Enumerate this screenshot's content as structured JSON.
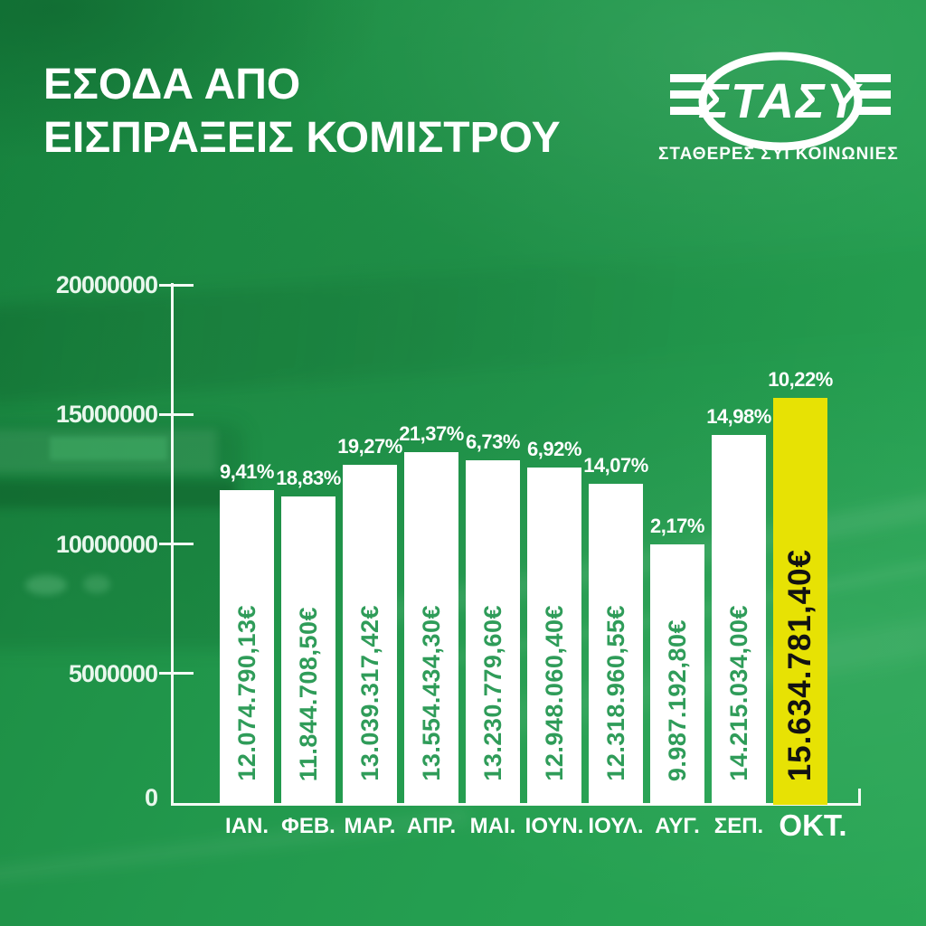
{
  "header": {
    "title_line1": "ΕΣΟΔΑ ΑΠΟ",
    "title_line2": "ΕΙΣΠΡΑΞΕΙΣ ΚΟΜΙΣΤΡΟΥ"
  },
  "logo": {
    "name": "ΣΤΑΣΥ",
    "subtitle": "ΣΤΑΘΕΡΕΣ ΣΥΓΚΟΙΝΩΝΙΕΣ"
  },
  "chart_data": {
    "type": "bar",
    "title": "ΕΣΟΔΑ ΑΠΟ ΕΙΣΠΡΑΞΕΙΣ ΚΟΜΙΣΤΡΟΥ",
    "categories": [
      "ΙΑΝ.",
      "ΦΕΒ.",
      "ΜΑΡ.",
      "ΑΠΡ.",
      "ΜΑΙ.",
      "ΙΟΥΝ.",
      "ΙΟΥΛ.",
      "ΑΥΓ.",
      "ΣΕΠ.",
      "ΟΚΤ."
    ],
    "values": [
      12074790.13,
      11844708.5,
      13039317.42,
      13554434.3,
      13230779.6,
      12948060.4,
      12318960.55,
      9987192.8,
      14215034.0,
      15634781.4
    ],
    "value_labels": [
      "12.074.790,13€",
      "11.844.708,50€",
      "13.039.317,42€",
      "13.554.434,30€",
      "13.230.779,60€",
      "12.948.060,40€",
      "12.318.960,55€",
      "9.987.192,80€",
      "14.215.034,00€",
      "15.634.781,40€"
    ],
    "pct_labels": [
      "9,41%",
      "18,83%",
      "19,27%",
      "21,37%",
      "6,73%",
      "6,92%",
      "14,07%",
      "2,17%",
      "14,98%",
      "10,22%"
    ],
    "y_ticks": [
      {
        "value": 20000000,
        "label": "20000000"
      },
      {
        "value": 15000000,
        "label": "15000000"
      },
      {
        "value": 10000000,
        "label": "10000000"
      },
      {
        "value": 5000000,
        "label": "5000000"
      },
      {
        "value": 0,
        "label": "0"
      }
    ],
    "ylim": [
      0,
      20000000
    ],
    "grid": false,
    "legend": null,
    "highlight_index": 9,
    "colors": {
      "background_green": "#1f9447",
      "bar_white": "#ffffff",
      "highlight_yellow": "#e7e204",
      "value_text_green": "#2f9c59",
      "value_text_black": "#121212",
      "axis_white": "#f4faf5"
    }
  }
}
